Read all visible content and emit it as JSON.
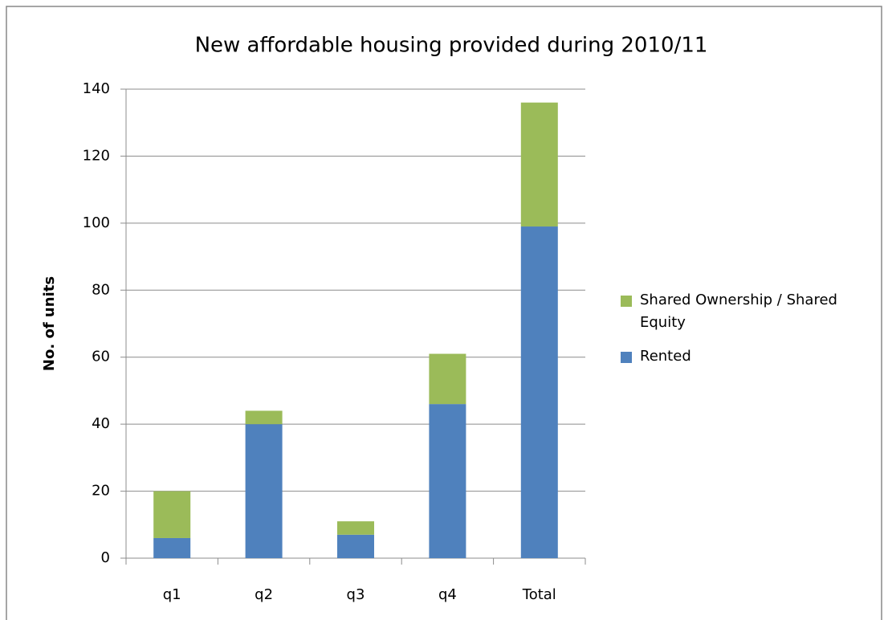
{
  "chart_data": {
    "type": "stacked_bar",
    "title": "New affordable housing provided during 2010/11",
    "y_label": "No. of units",
    "categories": [
      "q1",
      "q2",
      "q3",
      "q4",
      "Total"
    ],
    "series": [
      {
        "name": "Rented",
        "color": "#4f81bd",
        "values": [
          6,
          40,
          7,
          46,
          99
        ]
      },
      {
        "name": "Shared Ownership / Shared Equity",
        "color": "#9bbb59",
        "values": [
          14,
          4,
          4,
          15,
          37
        ]
      }
    ],
    "ylim": [
      0,
      140
    ],
    "yticks": [
      0,
      20,
      40,
      60,
      80,
      100,
      120,
      140
    ],
    "grid": true,
    "legend": "right"
  }
}
